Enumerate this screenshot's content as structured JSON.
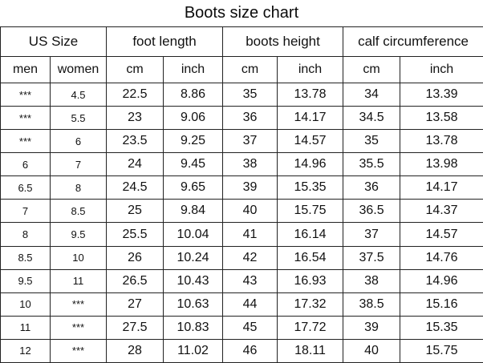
{
  "title": "Boots size chart",
  "chart_data": {
    "type": "table",
    "title": "Boots size chart",
    "na_marker": "***",
    "column_groups": [
      {
        "label": "US Size",
        "span": 2
      },
      {
        "label": "foot length",
        "span": 2
      },
      {
        "label": "boots height",
        "span": 2
      },
      {
        "label": "calf circumference",
        "span": 2
      }
    ],
    "columns": [
      "men",
      "women",
      "cm",
      "inch",
      "cm",
      "inch",
      "cm",
      "inch"
    ],
    "rows": [
      [
        "***",
        "4.5",
        "22.5",
        "8.86",
        "35",
        "13.78",
        "34",
        "13.39"
      ],
      [
        "***",
        "5.5",
        "23",
        "9.06",
        "36",
        "14.17",
        "34.5",
        "13.58"
      ],
      [
        "***",
        "6",
        "23.5",
        "9.25",
        "37",
        "14.57",
        "35",
        "13.78"
      ],
      [
        "6",
        "7",
        "24",
        "9.45",
        "38",
        "14.96",
        "35.5",
        "13.98"
      ],
      [
        "6.5",
        "8",
        "24.5",
        "9.65",
        "39",
        "15.35",
        "36",
        "14.17"
      ],
      [
        "7",
        "8.5",
        "25",
        "9.84",
        "40",
        "15.75",
        "36.5",
        "14.37"
      ],
      [
        "8",
        "9.5",
        "25.5",
        "10.04",
        "41",
        "16.14",
        "37",
        "14.57"
      ],
      [
        "8.5",
        "10",
        "26",
        "10.24",
        "42",
        "16.54",
        "37.5",
        "14.76"
      ],
      [
        "9.5",
        "11",
        "26.5",
        "10.43",
        "43",
        "16.93",
        "38",
        "14.96"
      ],
      [
        "10",
        "***",
        "27",
        "10.63",
        "44",
        "17.32",
        "38.5",
        "15.16"
      ],
      [
        "11",
        "***",
        "27.5",
        "10.83",
        "45",
        "17.72",
        "39",
        "15.35"
      ],
      [
        "12",
        "***",
        "28",
        "11.02",
        "46",
        "18.11",
        "40",
        "15.75"
      ]
    ],
    "colors": {
      "background": "#ffffff",
      "border": "#222222",
      "text": "#111111"
    }
  }
}
